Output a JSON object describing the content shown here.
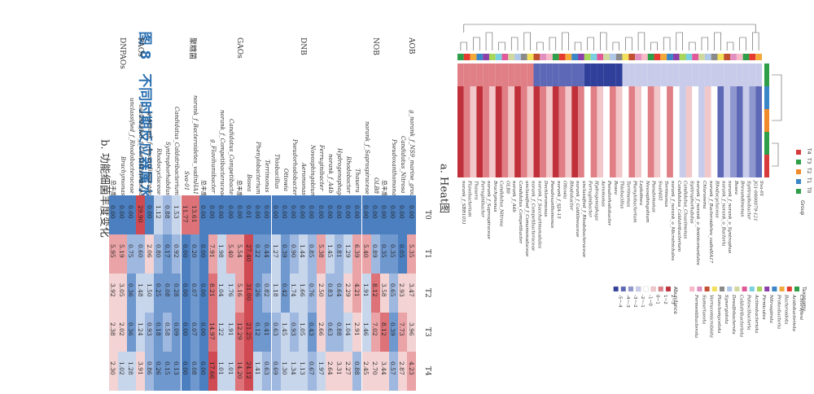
{
  "caption": "图 8　不同时期反应器属水平上微生物群落分布",
  "subcaption_a": "a. Heat图",
  "subcaption_b": "b. 功能细菌丰度变化",
  "table": {
    "columns": [
      "T0",
      "T1",
      "T2",
      "T3",
      "T4"
    ],
    "groups": [
      {
        "name": "AOB",
        "rows": [
          {
            "genus": "g_norank_f_NS9_marine_group",
            "values": [
              "0.00",
              "5.35",
              "3.47",
              "3.96",
              "4.23"
            ]
          },
          {
            "genus": "Candidatus_Nitrosa",
            "values": [
              "0.00",
              "0.05",
              "2.93",
              "7.73",
              "2.87"
            ]
          },
          {
            "genus": "Pseudoxanthomonas",
            "values": [
              "0.00",
              "0.35",
              "0.65",
              "0.39",
              "0.57"
            ]
          },
          {
            "genus": "总丰度",
            "values": [
              "0.00",
              "0.35",
              "3.58",
              "8.12",
              "3.44"
            ]
          }
        ]
      },
      {
        "name": "NOB",
        "rows": [
          {
            "genus": "OLB8",
            "values": [
              "0.00",
              "0.89",
              "8.12",
              "7.02",
              "2.70"
            ]
          },
          {
            "genus": "norank_f_Saprospiraceae",
            "values": [
              "0.00",
              "5.40",
              "1.91",
              "1.46",
              "2.45"
            ]
          },
          {
            "genus": "Thauera",
            "values": [
              "0.00",
              "6.39",
              "4.21",
              "2.91",
              "0.88"
            ]
          },
          {
            "genus": "Rhodobacter",
            "values": [
              "0.00",
              "1.29",
              "2.29",
              "1.04",
              "2.27"
            ]
          },
          {
            "genus": "Hydrogenophaga",
            "values": [
              "0.00",
              "0.81",
              "0.64",
              "0.88",
              "3.31"
            ]
          },
          {
            "genus": "norank_f_A4b",
            "values": [
              "0.00",
              "1.45",
              "0.83",
              "0.63",
              "2.64"
            ]
          },
          {
            "genus": "Ferruginibacter",
            "values": [
              "0.00",
              "5.38",
              "2.50",
              "2.66",
              "1.97"
            ]
          },
          {
            "genus": "Novosphingobium",
            "values": [
              "0.00",
              "0.85",
              "0.76",
              "0.43",
              "0.67"
            ]
          }
        ]
      },
      {
        "name": "DNB",
        "rows": [
          {
            "genus": "Aeromonas",
            "values": [
              "0.00",
              "1.44",
              "1.66",
              "1.05",
              "1.13"
            ]
          },
          {
            "genus": "Pseudorhodobacter",
            "values": [
              "0.00",
              "0.90",
              "1.74",
              "0.93",
              "1.34"
            ]
          },
          {
            "genus": "Ottowia",
            "values": [
              "0.00",
              "0.39",
              "0.42",
              "1.45",
              "1.30"
            ]
          },
          {
            "genus": "Thiobacillus",
            "values": [
              "0.00",
              "1.27",
              "1.18",
              "0.63",
              "0.69"
            ]
          },
          {
            "genus": "Terrimonas",
            "values": [
              "0.00",
              "0.44",
              "0.82",
              "0.41",
              "0.63"
            ]
          },
          {
            "genus": "Phenylobacterium",
            "values": [
              "0.00",
              "0.22",
              "0.26",
              "0.12",
              "1.41"
            ]
          },
          {
            "genus": "Bosea",
            "values": [
              "0.01",
              "27.40",
              "31.00",
              "21.25",
              "24.12"
            ]
          }
        ]
      },
      {
        "name": "GAOs",
        "rows": [
          {
            "genus": "总丰度",
            "values": [
              "0.00",
              "5.54",
              "5.16",
              "12.29",
              "14.20"
            ]
          },
          {
            "genus": "Candidatus_Competibacter",
            "values": [
              "0.00",
              "5.40",
              "1.76",
              "1.91",
              "1.01"
            ]
          },
          {
            "genus": "norank_f_Competibacteraceae",
            "values": [
              "0.00",
              "1.98",
              "1.04",
              "1.22",
              "1.01"
            ]
          },
          {
            "genus": "g_Flavihumibacter",
            "values": [
              "0.00",
              "7.91",
              "8.21",
              "14.97",
              "17.66"
            ]
          },
          {
            "genus": "总丰度",
            "values": [
              "0.00",
              "0.00",
              "0.00",
              "0.00",
              "0.00"
            ]
          }
        ]
      },
      {
        "name": "聚糖菌",
        "rows": [
          {
            "genus": "norank_f_Bacteroidetes_vadinHA17",
            "values": [
              "13.61",
              "0.20",
              "0.07",
              "0.07",
              "0.08"
            ]
          },
          {
            "genus": "Sva-01",
            "values": [
              "11.77",
              "0.00",
              "0.00",
              "0.00",
              "0.00"
            ]
          },
          {
            "genus": "Candidatus_Caldatribacterium",
            "values": [
              "1.53",
              "0.92",
              "0.28",
              "0.09",
              "0.13"
            ]
          },
          {
            "genus": "Syntrophorhabdus",
            "values": [
              "0.88",
              "0.17",
              "0.08",
              "0.58",
              "0.15"
            ]
          },
          {
            "genus": "Rhodocyclaceae",
            "values": [
              "1.12",
              "0.80",
              "0.25",
              "0.18",
              "0.26"
            ]
          },
          {
            "genus": "g_norank_f_Anaerolineaceae",
            "values": [
              "0.00",
              "2.06",
              "1.50",
              "0.93",
              "0.86"
            ]
          }
        ]
      },
      {
        "name": "PAOs",
        "rows": [
          {
            "genus": "unclassified_f_Comamonadaceae",
            "values": [
              "29.90",
              "0.60",
              "1.48",
              "1.24",
              "3.91"
            ]
          },
          {
            "genus": "unclassified_f_Rhodobacteraceae",
            "values": [
              "0.00",
              "0.75",
              "0.36",
              "0.36",
              "1.28"
            ]
          }
        ]
      },
      {
        "name": "DNPAOs",
        "rows": [
          {
            "genus": "Brachymonas",
            "values": [
              "0.00",
              "5.19",
              "3.05",
              "2.02",
              "1.02"
            ]
          },
          {
            "genus": "总丰度",
            "values": [
              "0.00",
              "5.95",
              "3.92",
              "2.38",
              "2.30"
            ]
          }
        ]
      }
    ]
  },
  "heatmap": {
    "group_legend_title": "Group",
    "groups": [
      {
        "name": "T0",
        "color": "#2e9e48"
      },
      {
        "name": "T1",
        "color": "#3a86c6"
      },
      {
        "name": "T2",
        "color": "#f08a2a"
      },
      {
        "name": "T3",
        "color": "#2e9e48"
      },
      {
        "name": "T4",
        "color": "#d63a3a"
      }
    ],
    "abundance_title": "Abundance",
    "abundance_bins": [
      "2~3",
      "1~2",
      "0~1",
      "-1~0",
      "-2~-1",
      "-3~-2",
      "-4~-3",
      "-5~-4"
    ],
    "abundance_colors": [
      "#c0303a",
      "#e07f86",
      "#f2c7c9",
      "#ffffff",
      "#c8ccea",
      "#8f97cf",
      "#5d68b6",
      "#2f3f9a"
    ],
    "taxonomy_title": "Taxonomy",
    "taxonomy": [
      "Chloroflexi",
      "Acidobacteriota",
      "Bacteroidota",
      "Proteobacteria",
      "Nitrospirota",
      "Firmicutes",
      "Actinobacteriota",
      "Patescibacteria",
      "Caldatribacteriota",
      "Desulfobacterota",
      "Synergistota",
      "Planctomycetota",
      "Verrucomicrobiota",
      "Sumerlaeota",
      "Fermentibacterota"
    ],
    "taxonomy_colors": [
      "#2e9e48",
      "#e53a2f",
      "#f3a93a",
      "#3a86c6",
      "#8c3fa8",
      "#a8d65a",
      "#7ad0e0",
      "#e05a9a",
      "#d0d8a0",
      "#b0c8e8",
      "#8a8a8a",
      "#f3e05a",
      "#c05030",
      "#e08fbf",
      "#f7b8c8"
    ],
    "genera": [
      "norank_f_SBR1031",
      "Flavobacterium",
      "Thauera",
      "Ferruginibacter",
      "norank_f_Saprospiraceae",
      "Brachymonas",
      "Candidatus_Nitrosa",
      "OLB8",
      "norank_f_A4b",
      "Candidatus_Competibacter",
      "unclassified_f_Comamonadaceae",
      "norank_f_Competibacteraceae",
      "norank_f_Saccharimonadales",
      "Dechloromonas",
      "Pseudoxanthomonas",
      "norank_f_SJA-15",
      "Ottowia",
      "Rhodobacter",
      "norank_f_Caldilineaceae",
      "unclassified_f_Rhodobacteraceae",
      "Ferruginibacter",
      "Hydrogenophaga",
      "Aeromonas",
      "Pseudorhodobacter",
      "Bosea",
      "Thiobacillus",
      "Terrimonas",
      "Phenylobacterium",
      "Leptolinea",
      "Novosphingobium",
      "Pseudomonas",
      "Sva0485",
      "Terrimonas",
      "norank_f_norank_o_Microtrichales",
      "Candidatus_Caldatribacterium",
      "Candidatus_Cloacimonas",
      "Syntrophorhabdus",
      "norank_f_norank_o_Aminicenantales",
      "Chloronema",
      "norank_f_Bacteroidetes_vadinHA17",
      "Rhodocyclaceae",
      "norank_f_norank_o_Bacteria",
      "norank_f_norank_o_Syntrophus",
      "Bosea",
      "Brevundimonas",
      "Syntrophobacter",
      "JG1-0000079-121",
      "Sva-01"
    ]
  }
}
